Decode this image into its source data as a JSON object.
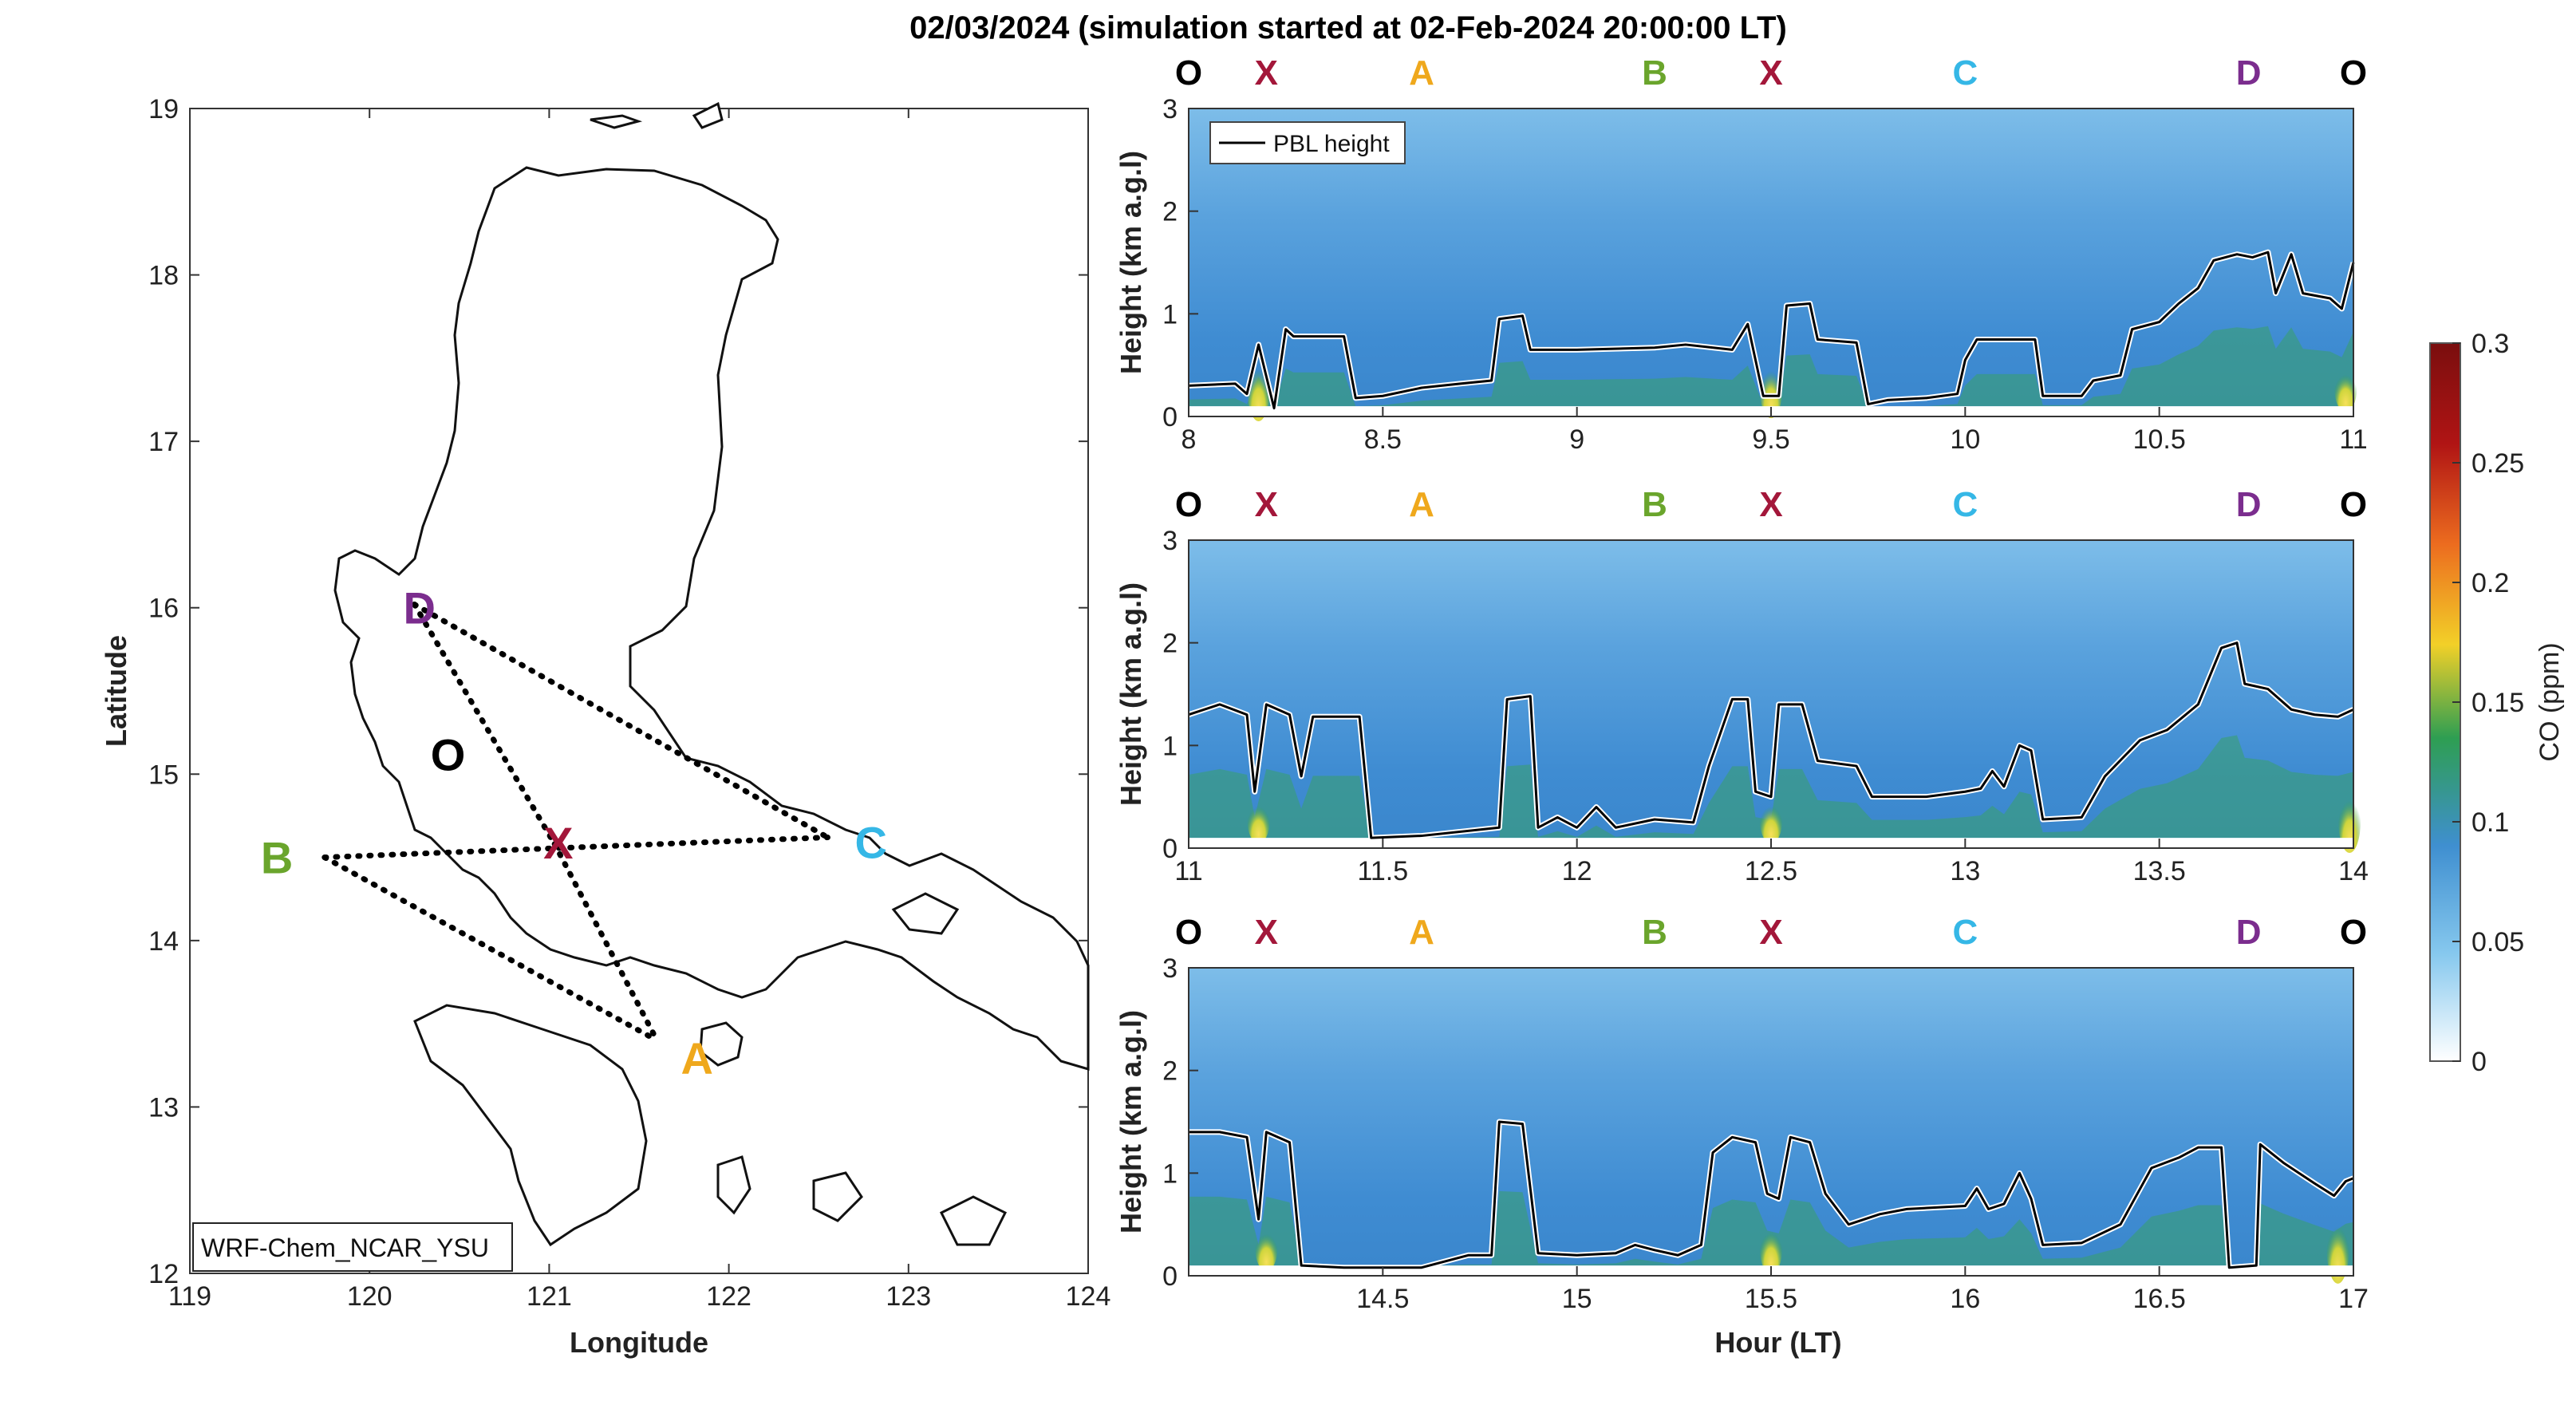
{
  "figure": {
    "title": "02/03/2024 (simulation started at 02-Feb-2024 20:00:00 LT)"
  },
  "chart_data": [
    {
      "type": "map",
      "xlabel": "Longitude",
      "ylabel": "Latitude",
      "xlim": [
        119,
        124
      ],
      "ylim": [
        12,
        19
      ],
      "xticks": [
        "119",
        "120",
        "121",
        "122",
        "123",
        "124"
      ],
      "yticks": [
        "12",
        "13",
        "14",
        "15",
        "16",
        "17",
        "18",
        "19"
      ],
      "model_label": "WRF-Chem_NCAR_YSU",
      "points": [
        {
          "name": "D",
          "lon": 120.25,
          "lat": 16.02,
          "color": "#7B2D8E"
        },
        {
          "name": "O",
          "lon": 120.42,
          "lat": 15.12,
          "color": "#000000"
        },
        {
          "name": "X",
          "lon": 121.03,
          "lat": 14.58,
          "color": "#A3173A"
        },
        {
          "name": "B",
          "lon": 119.75,
          "lat": 14.5,
          "color": "#6AA52C"
        },
        {
          "name": "C",
          "lon": 122.55,
          "lat": 14.62,
          "color": "#35B7E6"
        },
        {
          "name": "A",
          "lon": 121.6,
          "lat": 13.4,
          "color": "#EFA81C"
        }
      ],
      "routes": [
        [
          "D",
          "X"
        ],
        [
          "D",
          "C"
        ],
        [
          "B",
          "C"
        ],
        [
          "B",
          "A"
        ],
        [
          "X",
          "A"
        ]
      ]
    },
    {
      "type": "heatmap",
      "xlabel": "",
      "ylabel": "Height (km a.g.l)",
      "xlim": [
        8,
        11
      ],
      "ylim": [
        0,
        3
      ],
      "xticks": [
        "8",
        "8.5",
        "9",
        "9.5",
        "10",
        "10.5",
        "11"
      ],
      "yticks": [
        "0",
        "1",
        "2",
        "3"
      ],
      "legend": "PBL height",
      "route_labels": [
        {
          "t": 8.0,
          "name": "O"
        },
        {
          "t": 8.2,
          "name": "X"
        },
        {
          "t": 8.6,
          "name": "A"
        },
        {
          "t": 9.2,
          "name": "B"
        },
        {
          "t": 9.5,
          "name": "X"
        },
        {
          "t": 10.0,
          "name": "C"
        },
        {
          "t": 10.73,
          "name": "D"
        },
        {
          "t": 11.0,
          "name": "O"
        }
      ],
      "pbl": [
        [
          8.0,
          0.3
        ],
        [
          8.12,
          0.32
        ],
        [
          8.15,
          0.22
        ],
        [
          8.18,
          0.7
        ],
        [
          8.22,
          0.08
        ],
        [
          8.25,
          0.85
        ],
        [
          8.27,
          0.78
        ],
        [
          8.4,
          0.78
        ],
        [
          8.43,
          0.18
        ],
        [
          8.5,
          0.2
        ],
        [
          8.6,
          0.28
        ],
        [
          8.7,
          0.32
        ],
        [
          8.78,
          0.35
        ],
        [
          8.8,
          0.95
        ],
        [
          8.86,
          0.98
        ],
        [
          8.88,
          0.65
        ],
        [
          9.0,
          0.65
        ],
        [
          9.2,
          0.67
        ],
        [
          9.28,
          0.7
        ],
        [
          9.4,
          0.65
        ],
        [
          9.44,
          0.9
        ],
        [
          9.48,
          0.2
        ],
        [
          9.52,
          0.2
        ],
        [
          9.54,
          1.08
        ],
        [
          9.6,
          1.1
        ],
        [
          9.62,
          0.75
        ],
        [
          9.72,
          0.72
        ],
        [
          9.75,
          0.12
        ],
        [
          9.8,
          0.16
        ],
        [
          9.9,
          0.18
        ],
        [
          9.98,
          0.22
        ],
        [
          10.0,
          0.55
        ],
        [
          10.03,
          0.75
        ],
        [
          10.18,
          0.75
        ],
        [
          10.2,
          0.2
        ],
        [
          10.3,
          0.2
        ],
        [
          10.33,
          0.35
        ],
        [
          10.4,
          0.4
        ],
        [
          10.43,
          0.85
        ],
        [
          10.5,
          0.92
        ],
        [
          10.55,
          1.1
        ],
        [
          10.6,
          1.25
        ],
        [
          10.64,
          1.52
        ],
        [
          10.7,
          1.58
        ],
        [
          10.74,
          1.55
        ],
        [
          10.78,
          1.6
        ],
        [
          10.8,
          1.2
        ],
        [
          10.84,
          1.58
        ],
        [
          10.87,
          1.2
        ],
        [
          10.94,
          1.15
        ],
        [
          10.97,
          1.05
        ],
        [
          11.0,
          1.5
        ]
      ],
      "hotspots": [
        [
          8.18,
          0.12,
          0.18
        ],
        [
          9.5,
          0.12,
          0.16
        ],
        [
          10.98,
          0.12,
          0.12
        ]
      ]
    },
    {
      "type": "heatmap",
      "xlabel": "",
      "ylabel": "Height (km a.g.l)",
      "xlim": [
        11,
        14
      ],
      "ylim": [
        0,
        3
      ],
      "xticks": [
        "11",
        "11.5",
        "12",
        "12.5",
        "13",
        "13.5",
        "14"
      ],
      "yticks": [
        "0",
        "1",
        "2",
        "3"
      ],
      "route_labels": [
        {
          "t": 11.0,
          "name": "O"
        },
        {
          "t": 11.2,
          "name": "X"
        },
        {
          "t": 11.6,
          "name": "A"
        },
        {
          "t": 12.2,
          "name": "B"
        },
        {
          "t": 12.5,
          "name": "X"
        },
        {
          "t": 13.0,
          "name": "C"
        },
        {
          "t": 13.73,
          "name": "D"
        },
        {
          "t": 14.0,
          "name": "O"
        }
      ],
      "pbl": [
        [
          11.0,
          1.3
        ],
        [
          11.08,
          1.4
        ],
        [
          11.15,
          1.3
        ],
        [
          11.17,
          0.55
        ],
        [
          11.2,
          1.4
        ],
        [
          11.26,
          1.3
        ],
        [
          11.29,
          0.7
        ],
        [
          11.32,
          1.28
        ],
        [
          11.44,
          1.28
        ],
        [
          11.47,
          0.1
        ],
        [
          11.6,
          0.12
        ],
        [
          11.8,
          0.2
        ],
        [
          11.82,
          1.45
        ],
        [
          11.88,
          1.48
        ],
        [
          11.9,
          0.2
        ],
        [
          11.95,
          0.3
        ],
        [
          12.0,
          0.2
        ],
        [
          12.05,
          0.4
        ],
        [
          12.1,
          0.2
        ],
        [
          12.2,
          0.28
        ],
        [
          12.3,
          0.25
        ],
        [
          12.34,
          0.8
        ],
        [
          12.4,
          1.45
        ],
        [
          12.44,
          1.45
        ],
        [
          12.46,
          0.55
        ],
        [
          12.5,
          0.5
        ],
        [
          12.52,
          1.4
        ],
        [
          12.58,
          1.4
        ],
        [
          12.62,
          0.85
        ],
        [
          12.72,
          0.8
        ],
        [
          12.76,
          0.5
        ],
        [
          12.9,
          0.5
        ],
        [
          13.0,
          0.55
        ],
        [
          13.04,
          0.58
        ],
        [
          13.07,
          0.75
        ],
        [
          13.1,
          0.6
        ],
        [
          13.14,
          1.0
        ],
        [
          13.17,
          0.95
        ],
        [
          13.2,
          0.28
        ],
        [
          13.3,
          0.3
        ],
        [
          13.36,
          0.7
        ],
        [
          13.45,
          1.05
        ],
        [
          13.52,
          1.15
        ],
        [
          13.6,
          1.4
        ],
        [
          13.66,
          1.95
        ],
        [
          13.7,
          2.0
        ],
        [
          13.72,
          1.6
        ],
        [
          13.78,
          1.55
        ],
        [
          13.84,
          1.35
        ],
        [
          13.9,
          1.3
        ],
        [
          13.96,
          1.28
        ],
        [
          14.0,
          1.35
        ]
      ],
      "hotspots": [
        [
          11.18,
          0.12,
          0.12
        ],
        [
          12.5,
          0.12,
          0.12
        ],
        [
          13.99,
          0.12,
          0.18
        ]
      ]
    },
    {
      "type": "heatmap",
      "xlabel": "Hour (LT)",
      "ylabel": "Height (km a.g.l)",
      "xlim": [
        14,
        17
      ],
      "ylim": [
        0,
        3
      ],
      "xticks": [
        "14.5",
        "15",
        "15.5",
        "16",
        "16.5",
        "17"
      ],
      "xtick_values": [
        14.5,
        15,
        15.5,
        16,
        16.5,
        17
      ],
      "yticks": [
        "0",
        "1",
        "2",
        "3"
      ],
      "route_labels": [
        {
          "t": 14.0,
          "name": "O"
        },
        {
          "t": 14.2,
          "name": "X"
        },
        {
          "t": 14.6,
          "name": "A"
        },
        {
          "t": 15.2,
          "name": "B"
        },
        {
          "t": 15.5,
          "name": "X"
        },
        {
          "t": 16.0,
          "name": "C"
        },
        {
          "t": 16.73,
          "name": "D"
        },
        {
          "t": 17.0,
          "name": "O"
        }
      ],
      "pbl": [
        [
          14.0,
          1.4
        ],
        [
          14.08,
          1.4
        ],
        [
          14.15,
          1.35
        ],
        [
          14.18,
          0.55
        ],
        [
          14.2,
          1.4
        ],
        [
          14.26,
          1.3
        ],
        [
          14.29,
          0.1
        ],
        [
          14.4,
          0.08
        ],
        [
          14.6,
          0.08
        ],
        [
          14.72,
          0.2
        ],
        [
          14.78,
          0.2
        ],
        [
          14.8,
          1.5
        ],
        [
          14.86,
          1.48
        ],
        [
          14.9,
          0.22
        ],
        [
          15.0,
          0.2
        ],
        [
          15.1,
          0.22
        ],
        [
          15.15,
          0.3
        ],
        [
          15.2,
          0.25
        ],
        [
          15.26,
          0.2
        ],
        [
          15.32,
          0.3
        ],
        [
          15.35,
          1.2
        ],
        [
          15.4,
          1.35
        ],
        [
          15.46,
          1.3
        ],
        [
          15.49,
          0.8
        ],
        [
          15.52,
          0.75
        ],
        [
          15.55,
          1.35
        ],
        [
          15.6,
          1.3
        ],
        [
          15.64,
          0.8
        ],
        [
          15.7,
          0.5
        ],
        [
          15.78,
          0.6
        ],
        [
          15.85,
          0.65
        ],
        [
          16.0,
          0.68
        ],
        [
          16.03,
          0.85
        ],
        [
          16.06,
          0.65
        ],
        [
          16.1,
          0.7
        ],
        [
          16.14,
          1.0
        ],
        [
          16.17,
          0.75
        ],
        [
          16.2,
          0.3
        ],
        [
          16.3,
          0.32
        ],
        [
          16.4,
          0.5
        ],
        [
          16.48,
          1.05
        ],
        [
          16.55,
          1.15
        ],
        [
          16.6,
          1.25
        ],
        [
          16.66,
          1.25
        ],
        [
          16.68,
          0.08
        ],
        [
          16.75,
          0.1
        ],
        [
          16.76,
          1.28
        ],
        [
          16.82,
          1.1
        ],
        [
          16.86,
          1.0
        ],
        [
          16.9,
          0.9
        ],
        [
          16.95,
          0.78
        ],
        [
          16.98,
          0.92
        ],
        [
          17.0,
          0.95
        ]
      ],
      "hotspots": [
        [
          14.2,
          0.12,
          0.12
        ],
        [
          15.5,
          0.12,
          0.14
        ],
        [
          16.96,
          0.12,
          0.2
        ]
      ]
    }
  ],
  "colorbar": {
    "label": "CO (ppm)",
    "range": [
      0,
      0.3
    ],
    "ticks": [
      "0",
      "0.05",
      "0.1",
      "0.15",
      "0.2",
      "0.25",
      "0.3"
    ],
    "tick_values": [
      0,
      0.05,
      0.1,
      0.15,
      0.2,
      0.25,
      0.3
    ],
    "colors": [
      "#ffffff",
      "#86c8ee",
      "#3f8fd0",
      "#2e9e52",
      "#f2d028",
      "#ec6c1f",
      "#b01414",
      "#7a0e0e"
    ]
  },
  "route_colors": {
    "O": "#000000",
    "X": "#A3173A",
    "A": "#EFA81C",
    "B": "#6AA52C",
    "C": "#35B7E6",
    "D": "#7B2D8E"
  }
}
